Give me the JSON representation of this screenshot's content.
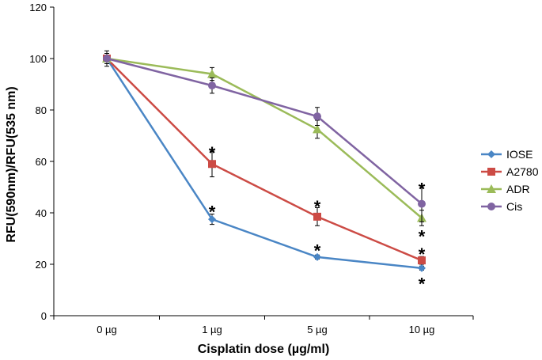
{
  "chart_data": {
    "type": "line",
    "title": "",
    "xlabel": "Cisplatin dose (µg/ml)",
    "ylabel": "RFU(590nm)/RFU(535 nm)",
    "categories": [
      "0 µg",
      "1 µg",
      "5 µg",
      "10 µg"
    ],
    "ylim": [
      0,
      120
    ],
    "yticks": [
      "0",
      "20",
      "40",
      "60",
      "80",
      "100",
      "120"
    ],
    "legend_position": "right",
    "series": [
      {
        "name": "IOSE",
        "color": "#4a86c5",
        "marker": "diamond",
        "values": [
          100,
          37.5,
          22.8,
          18.5
        ],
        "errors": [
          2,
          2,
          0.8,
          0.8
        ]
      },
      {
        "name": "A2780",
        "color": "#cc4b45",
        "marker": "square",
        "values": [
          100,
          59,
          38.5,
          21.5
        ],
        "errors": [
          2,
          5,
          3.5,
          1.5
        ]
      },
      {
        "name": "ADR",
        "color": "#9bbb59",
        "marker": "triangle",
        "values": [
          100,
          94,
          72.5,
          38
        ],
        "errors": [
          2,
          2.5,
          3.5,
          3
        ]
      },
      {
        "name": "Cis",
        "color": "#8064a2",
        "marker": "circle",
        "values": [
          100,
          89.5,
          77.5,
          43.5
        ],
        "errors": [
          3,
          3,
          3.5,
          7
        ]
      }
    ],
    "annotations": [
      {
        "text": "*",
        "category": "1 µg",
        "y": 65
      },
      {
        "text": "*",
        "category": "1 µg",
        "y": 42
      },
      {
        "text": "*",
        "category": "5 µg",
        "y": 44
      },
      {
        "text": "*",
        "category": "5 µg",
        "y": 27
      },
      {
        "text": "*",
        "category": "10 µg",
        "y": 51
      },
      {
        "text": "*",
        "category": "10 µg",
        "y": 32.5
      },
      {
        "text": "*",
        "category": "10 µg",
        "y": 25.5
      },
      {
        "text": "*",
        "category": "10 µg",
        "y": 14
      }
    ]
  }
}
